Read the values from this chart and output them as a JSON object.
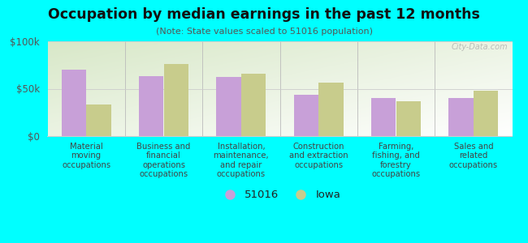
{
  "title": "Occupation by median earnings in the past 12 months",
  "subtitle": "(Note: State values scaled to 51016 population)",
  "background_color": "#00FFFF",
  "categories": [
    "Material\nmoving\noccupations",
    "Business and\nfinancial\noperations\noccupations",
    "Installation,\nmaintenance,\nand repair\noccupations",
    "Construction\nand extraction\noccupations",
    "Farming,\nfishing, and\nforestry\noccupations",
    "Sales and\nrelated\noccupations"
  ],
  "values_51016": [
    70000,
    63000,
    62000,
    44000,
    40000,
    40000
  ],
  "values_iowa": [
    33000,
    76000,
    66000,
    56000,
    37000,
    48000
  ],
  "color_51016": "#c8a0d8",
  "color_iowa": "#c8cc8c",
  "ylim": [
    0,
    100000
  ],
  "yticks": [
    0,
    50000,
    100000
  ],
  "ytick_labels": [
    "$0",
    "$50k",
    "$100k"
  ],
  "legend_51016": "51016",
  "legend_iowa": "Iowa",
  "bar_width": 0.32,
  "watermark": "City-Data.com"
}
